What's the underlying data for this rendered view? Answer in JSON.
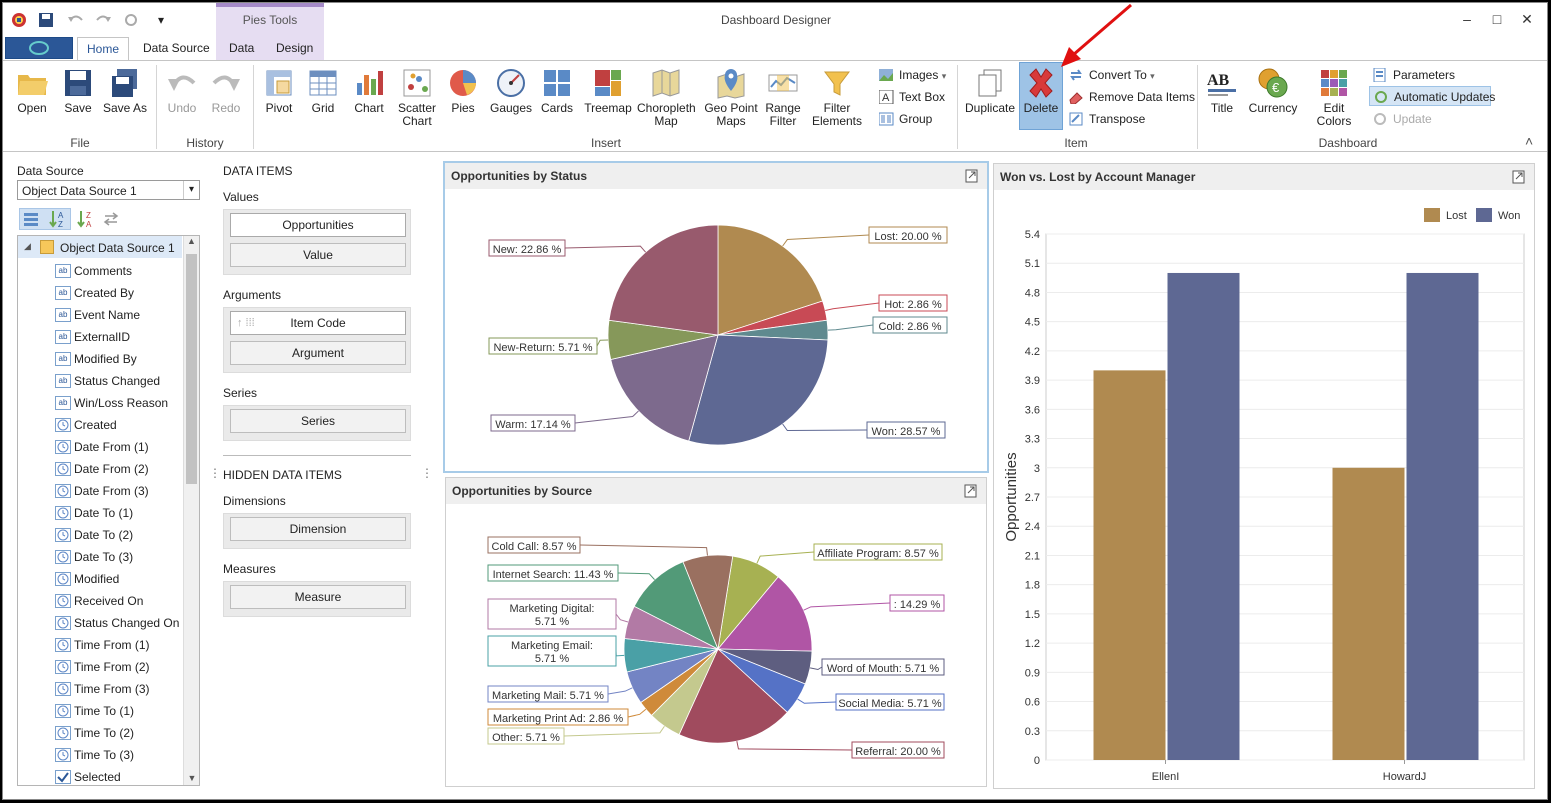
{
  "window": {
    "title": "Dashboard Designer",
    "minimize": "–",
    "maximize": "□",
    "close": "✕",
    "qat_dropdown": "▾"
  },
  "ribbon": {
    "contextual_label": "Pies Tools",
    "tabs": [
      "Home",
      "Data Source",
      "Data",
      "Design"
    ],
    "file": {
      "open": "Open",
      "save": "Save",
      "save_as": "Save As",
      "group": "File"
    },
    "history": {
      "undo": "Undo",
      "redo": "Redo",
      "group": "History"
    },
    "insert": {
      "pivot": "Pivot",
      "grid": "Grid",
      "chart": "Chart",
      "scatter1": "Scatter",
      "scatter2": "Chart",
      "pies": "Pies",
      "gauges": "Gauges",
      "cards": "Cards",
      "treemap": "Treemap",
      "choro1": "Choropleth",
      "choro2": "Map",
      "geo1": "Geo Point",
      "geo2": "Maps",
      "range1": "Range",
      "range2": "Filter",
      "filter1": "Filter",
      "filter2": "Elements",
      "images": "Images",
      "text_box": "Text Box",
      "group_btn": "Group",
      "group": "Insert"
    },
    "item": {
      "duplicate": "Duplicate",
      "delete": "Delete",
      "convert_to": "Convert To",
      "remove_data_items": "Remove Data Items",
      "transpose": "Transpose",
      "group": "Item"
    },
    "dashboard": {
      "title": "Title",
      "currency": "Currency",
      "edit_colors": "Edit Colors",
      "parameters": "Parameters",
      "automatic_updates": "Automatic Updates",
      "update": "Update",
      "group": "Dashboard"
    },
    "collapse_icon": "˄"
  },
  "datasource": {
    "label": "Data Source",
    "selected": "Object Data Source 1",
    "tree_root": "Object Data Source 1",
    "fields": [
      {
        "name": "Comments",
        "type": "ab"
      },
      {
        "name": "Created By",
        "type": "ab"
      },
      {
        "name": "Event Name",
        "type": "ab"
      },
      {
        "name": "ExternalID",
        "type": "ab"
      },
      {
        "name": "Modified By",
        "type": "ab"
      },
      {
        "name": "Status Changed",
        "type": "ab"
      },
      {
        "name": "Win/Loss Reason",
        "type": "ab"
      },
      {
        "name": "Created",
        "type": "clock"
      },
      {
        "name": "Date From (1)",
        "type": "clock"
      },
      {
        "name": "Date From (2)",
        "type": "clock"
      },
      {
        "name": "Date From (3)",
        "type": "clock"
      },
      {
        "name": "Date To (1)",
        "type": "clock"
      },
      {
        "name": "Date To (2)",
        "type": "clock"
      },
      {
        "name": "Date To (3)",
        "type": "clock"
      },
      {
        "name": "Modified",
        "type": "clock"
      },
      {
        "name": "Received On",
        "type": "clock"
      },
      {
        "name": "Status Changed On",
        "type": "clock"
      },
      {
        "name": "Time From (1)",
        "type": "clock"
      },
      {
        "name": "Time From (2)",
        "type": "clock"
      },
      {
        "name": "Time From (3)",
        "type": "clock"
      },
      {
        "name": "Time To (1)",
        "type": "clock"
      },
      {
        "name": "Time To (2)",
        "type": "clock"
      },
      {
        "name": "Time To (3)",
        "type": "clock"
      },
      {
        "name": "Selected",
        "type": "check"
      }
    ]
  },
  "data_items": {
    "header": "DATA ITEMS",
    "values_label": "Values",
    "values_item": "Opportunities",
    "values_placeholder": "Value",
    "arguments_label": "Arguments",
    "arguments_item": "Item Code",
    "arguments_placeholder": "Argument",
    "series_label": "Series",
    "series_placeholder": "Series",
    "hidden_header": "HIDDEN DATA ITEMS",
    "dimensions_label": "Dimensions",
    "dimensions_placeholder": "Dimension",
    "measures_label": "Measures",
    "measures_placeholder": "Measure"
  },
  "chart_data": [
    {
      "type": "pie",
      "title": "Opportunities by Status",
      "slices": [
        {
          "label": "Lost",
          "value": 20.0,
          "color": "#b08a50",
          "text": "Lost: 20.00 %"
        },
        {
          "label": "Hot",
          "value": 2.86,
          "color": "#c84a55",
          "text": "Hot: 2.86 %"
        },
        {
          "label": "Cold",
          "value": 2.86,
          "color": "#5f8a8f",
          "text": "Cold: 2.86 %"
        },
        {
          "label": "Won",
          "value": 28.57,
          "color": "#5e6893",
          "text": "Won: 28.57 %"
        },
        {
          "label": "Warm",
          "value": 17.14,
          "color": "#7d6a8d",
          "text": "Warm: 17.14 %"
        },
        {
          "label": "New-Return",
          "value": 5.71,
          "color": "#86985a",
          "text": "New-Return: 5.71 %"
        },
        {
          "label": "New",
          "value": 22.86,
          "color": "#985a6d",
          "text": "New: 22.86 %"
        }
      ]
    },
    {
      "type": "pie",
      "title": "Opportunities by Source",
      "slices": [
        {
          "label": "Affiliate Program",
          "value": 8.57,
          "color": "#a7b152",
          "text": "Affiliate Program: 8.57 %"
        },
        {
          "label": "",
          "value": 14.29,
          "color": "#b055a5",
          "text": ": 14.29 %"
        },
        {
          "label": "Word of Mouth",
          "value": 5.71,
          "color": "#5e5e80",
          "text": "Word of Mouth: 5.71 %"
        },
        {
          "label": "Social Media",
          "value": 5.71,
          "color": "#5572c6",
          "text": "Social Media: 5.71 %"
        },
        {
          "label": "Referral",
          "value": 20.0,
          "color": "#a04b5e",
          "text": "Referral: 20.00 %"
        },
        {
          "label": "Other",
          "value": 5.71,
          "color": "#c4c98e",
          "text": "Other: 5.71 %"
        },
        {
          "label": "Marketing Print Ad",
          "value": 2.86,
          "color": "#cf8a3a",
          "text": "Marketing Print Ad: 2.86 %"
        },
        {
          "label": "Marketing Mail",
          "value": 5.71,
          "color": "#7384c4",
          "text": "Marketing Mail: 5.71 %"
        },
        {
          "label": "Marketing Email",
          "value": 5.71,
          "color": "#4aa0a6",
          "text": "Marketing Email: 5.71 %"
        },
        {
          "label": "Marketing Digital",
          "value": 5.71,
          "color": "#b27aa5",
          "text": "Marketing Digital: 5.71 %"
        },
        {
          "label": "Internet Search",
          "value": 11.43,
          "color": "#529a78",
          "text": "Internet Search: 11.43 %"
        },
        {
          "label": "Cold Call",
          "value": 8.57,
          "color": "#9a7060",
          "text": "Cold Call: 8.57 %"
        }
      ]
    },
    {
      "type": "bar",
      "title": "Won vs. Lost by Account Manager",
      "ylabel": "Opportunities",
      "xlabel": "",
      "categories": [
        "EllenI",
        "HowardJ"
      ],
      "series": [
        {
          "name": "Lost",
          "color": "#b08a50",
          "values": [
            4,
            3
          ]
        },
        {
          "name": "Won",
          "color": "#5e6893",
          "values": [
            5,
            5
          ]
        }
      ],
      "ylim": [
        0,
        5.4
      ],
      "yticks": [
        "0",
        "0.3",
        "0.6",
        "0.9",
        "1.2",
        "1.5",
        "1.8",
        "2.1",
        "2.4",
        "2.7",
        "3",
        "3.3",
        "3.6",
        "3.9",
        "4.2",
        "4.5",
        "4.8",
        "5.1",
        "5.4"
      ],
      "legend": "top-right",
      "grid": true
    }
  ]
}
